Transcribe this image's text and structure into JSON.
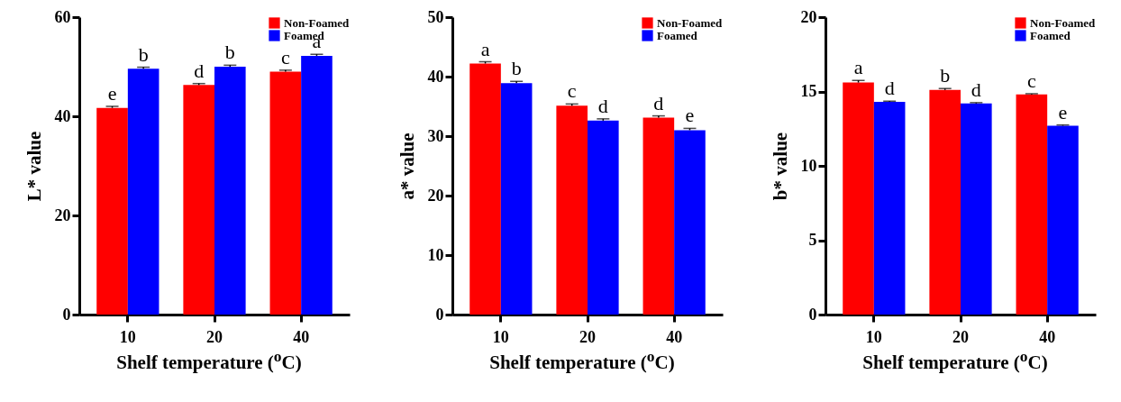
{
  "chart_data": [
    {
      "type": "bar",
      "xlabel": "Shelf temperature ($^{o}$C)",
      "ylabel": "L* value",
      "categories": [
        "10",
        "20",
        "40"
      ],
      "ylim": [
        0,
        60
      ],
      "yticks": [
        0,
        20,
        40,
        60
      ],
      "grid": false,
      "legend": "top right",
      "series": [
        {
          "name": "Non-Foamed",
          "color": "#ff0000",
          "values": [
            41.7,
            46.3,
            49.0
          ],
          "errors": [
            0.3,
            0.3,
            0.3
          ],
          "value_labels": [
            "e",
            "d",
            "c"
          ]
        },
        {
          "name": "Foamed",
          "color": "#0000ff",
          "values": [
            49.6,
            50.0,
            52.2
          ],
          "errors": [
            0.3,
            0.3,
            0.3
          ],
          "value_labels": [
            "b",
            "b",
            "a"
          ]
        }
      ]
    },
    {
      "type": "bar",
      "xlabel": "Shelf temperature ($^{o}$C)",
      "ylabel": "a* value",
      "categories": [
        "10",
        "20",
        "40"
      ],
      "ylim": [
        0,
        50
      ],
      "yticks": [
        0,
        10,
        20,
        30,
        40,
        50
      ],
      "grid": false,
      "legend": "top right",
      "series": [
        {
          "name": "Non-Foamed",
          "color": "#ff0000",
          "values": [
            42.2,
            35.1,
            33.1
          ],
          "errors": [
            0.3,
            0.3,
            0.3
          ],
          "value_labels": [
            "a",
            "c",
            "d"
          ]
        },
        {
          "name": "Foamed",
          "color": "#0000ff",
          "values": [
            38.9,
            32.6,
            31.0
          ],
          "errors": [
            0.3,
            0.3,
            0.3
          ],
          "value_labels": [
            "b",
            "d",
            "e"
          ]
        }
      ]
    },
    {
      "type": "bar",
      "xlabel": "Shelf temperature ($^{o}$C)",
      "ylabel": "b* value",
      "categories": [
        "10",
        "20",
        "40"
      ],
      "ylim": [
        0,
        20
      ],
      "yticks": [
        0,
        5,
        10,
        15,
        20
      ],
      "grid": false,
      "legend": "top right",
      "series": [
        {
          "name": "Non-Foamed",
          "color": "#ff0000",
          "values": [
            15.6,
            15.1,
            14.8
          ],
          "errors": [
            0.15,
            0.1,
            0.05
          ],
          "value_labels": [
            "a",
            "b",
            "c"
          ]
        },
        {
          "name": "Foamed",
          "color": "#0000ff",
          "values": [
            14.3,
            14.2,
            12.7
          ],
          "errors": [
            0.05,
            0.05,
            0.05
          ],
          "value_labels": [
            "d",
            "d",
            "e"
          ]
        }
      ]
    }
  ]
}
